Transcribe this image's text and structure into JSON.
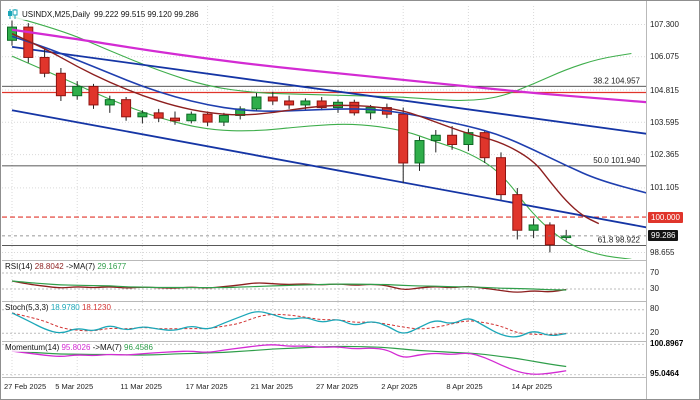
{
  "meta": {
    "symbol_label": "USINDX,M25,Daily",
    "ohlc_label": "99.222 99.515 99.120 99.286"
  },
  "colors": {
    "up_candle": "#2fae4a",
    "up_stroke": "#0c6b25",
    "down_candle": "#e0352b",
    "down_stroke": "#8e1310",
    "wick": "#222222",
    "grid": "#d9d9d9",
    "fib_line": "#222222",
    "alert_red": "#e0352b",
    "last_price_badge": "#141414"
  },
  "price_axis": {
    "labels": [
      {
        "text": "107.300",
        "price": 107.3
      },
      {
        "text": "106.075",
        "price": 106.075
      },
      {
        "text": "104.815",
        "price": 104.815
      },
      {
        "text": "103.595",
        "price": 103.595
      },
      {
        "text": "102.365",
        "price": 102.365
      },
      {
        "text": "101.105",
        "price": 101.105
      },
      {
        "text": "98.655",
        "price": 98.655
      }
    ]
  },
  "badges": [
    {
      "name": "alert-price-badge",
      "text": "100.000",
      "price": 100.0,
      "bg": "#e0352b"
    },
    {
      "name": "last-price-badge",
      "text": "99.286",
      "price": 99.286,
      "bg": "#141414"
    }
  ],
  "levels": {
    "fib": [
      {
        "label": "38.2 104.957",
        "price": 104.957
      },
      {
        "label": "50.0 101.940",
        "price": 101.94
      },
      {
        "label": "61.8 98.922",
        "price": 98.922
      }
    ],
    "horizontal_lines": [
      {
        "name": "resistance-line",
        "price": 104.72,
        "color": "#e0352b",
        "style": "solid"
      },
      {
        "name": "alert-line",
        "price": 100.0,
        "color": "#e0352b",
        "style": "dashed"
      }
    ]
  },
  "x_axis": {
    "tick_labels": [
      "27 Feb 2025",
      "5 Mar 2025",
      "11 Mar 2025",
      "17 Mar 2025",
      "21 Mar 2025",
      "27 Mar 2025",
      "2 Apr 2025",
      "8 Apr 2025",
      "14 Apr 2025"
    ],
    "tick_indices": [
      0,
      4,
      8,
      12,
      16,
      20,
      24,
      28,
      32
    ]
  },
  "chart_data": [
    {
      "type": "candlestick",
      "title": "USINDX,M25,Daily",
      "last_ohlc": {
        "open": 99.222,
        "high": 99.515,
        "low": 99.12,
        "close": 99.286
      },
      "ylim": [
        98.41,
        108.0
      ],
      "dates": [
        "27 Feb",
        "28 Feb",
        "3 Mar",
        "4 Mar",
        "5 Mar",
        "6 Mar",
        "7 Mar",
        "10 Mar",
        "11 Mar",
        "12 Mar",
        "13 Mar",
        "14 Mar",
        "17 Mar",
        "18 Mar",
        "19 Mar",
        "20 Mar",
        "21 Mar",
        "24 Mar",
        "25 Mar",
        "26 Mar",
        "27 Mar",
        "28 Mar",
        "31 Mar",
        "1 Apr",
        "2 Apr",
        "3 Apr",
        "4 Apr",
        "7 Apr",
        "8 Apr",
        "9 Apr",
        "10 Apr",
        "11 Apr",
        "14 Apr",
        "15 Apr",
        "16 Apr"
      ],
      "candles": [
        [
          106.7,
          107.45,
          106.5,
          107.2
        ],
        [
          107.2,
          107.35,
          105.85,
          106.05
        ],
        [
          106.05,
          106.4,
          105.3,
          105.45
        ],
        [
          105.45,
          105.65,
          104.4,
          104.6
        ],
        [
          104.6,
          105.15,
          104.45,
          104.95
        ],
        [
          104.95,
          105.05,
          104.1,
          104.25
        ],
        [
          104.25,
          104.6,
          103.95,
          104.45
        ],
        [
          104.45,
          104.55,
          103.65,
          103.8
        ],
        [
          103.8,
          104.05,
          103.55,
          103.95
        ],
        [
          103.95,
          104.1,
          103.6,
          103.75
        ],
        [
          103.75,
          104.0,
          103.5,
          103.65
        ],
        [
          103.65,
          104.0,
          103.55,
          103.9
        ],
        [
          103.9,
          104.0,
          103.45,
          103.6
        ],
        [
          103.6,
          103.95,
          103.45,
          103.85
        ],
        [
          103.85,
          104.2,
          103.7,
          104.1
        ],
        [
          104.1,
          104.7,
          104.0,
          104.55
        ],
        [
          104.55,
          104.75,
          104.25,
          104.4
        ],
        [
          104.4,
          104.6,
          104.1,
          104.25
        ],
        [
          104.25,
          104.5,
          104.05,
          104.4
        ],
        [
          104.4,
          104.55,
          104.05,
          104.15
        ],
        [
          104.15,
          104.45,
          103.95,
          104.35
        ],
        [
          104.35,
          104.45,
          103.85,
          103.95
        ],
        [
          103.95,
          104.25,
          103.7,
          104.15
        ],
        [
          104.15,
          104.3,
          103.75,
          103.9
        ],
        [
          103.9,
          104.15,
          101.3,
          102.05
        ],
        [
          102.05,
          103.05,
          101.75,
          102.9
        ],
        [
          102.9,
          103.3,
          102.45,
          103.1
        ],
        [
          103.1,
          103.45,
          102.55,
          102.75
        ],
        [
          102.75,
          103.35,
          102.5,
          103.2
        ],
        [
          103.2,
          103.3,
          102.05,
          102.25
        ],
        [
          102.25,
          102.45,
          100.65,
          100.85
        ],
        [
          100.85,
          101.1,
          99.15,
          99.5
        ],
        [
          99.5,
          99.95,
          99.2,
          99.7
        ],
        [
          99.7,
          99.8,
          98.66,
          98.95
        ],
        [
          99.222,
          99.515,
          99.12,
          99.286
        ]
      ],
      "overlays": [
        {
          "name": "bollinger-upper",
          "color": "#3fae4c",
          "width": 1.1,
          "points": [
            [
              0,
              107.6
            ],
            [
              3,
              107.1
            ],
            [
              6,
              106.3
            ],
            [
              9,
              105.55
            ],
            [
              12,
              104.95
            ],
            [
              15,
              104.7
            ],
            [
              18,
              104.65
            ],
            [
              21,
              104.6
            ],
            [
              24,
              104.55
            ],
            [
              26,
              104.45
            ],
            [
              28,
              104.4
            ],
            [
              30,
              104.55
            ],
            [
              32,
              105.05
            ],
            [
              34,
              105.6
            ],
            [
              36,
              106.0
            ],
            [
              38,
              106.2
            ]
          ]
        },
        {
          "name": "bollinger-lower",
          "color": "#3fae4c",
          "width": 1.1,
          "points": [
            [
              0,
              106.1
            ],
            [
              3,
              105.3
            ],
            [
              6,
              104.45
            ],
            [
              9,
              103.75
            ],
            [
              12,
              103.3
            ],
            [
              15,
              103.25
            ],
            [
              18,
              103.45
            ],
            [
              21,
              103.55
            ],
            [
              24,
              103.3
            ],
            [
              26,
              102.85
            ],
            [
              28,
              102.45
            ],
            [
              30,
              101.7
            ],
            [
              32,
              100.05
            ],
            [
              34,
              99.0
            ],
            [
              36,
              98.55
            ],
            [
              38,
              98.4
            ]
          ]
        },
        {
          "name": "trendline-upper",
          "color": "#1535a5",
          "width": 1.8,
          "points": [
            [
              0,
              106.45
            ],
            [
              39,
              103.15
            ]
          ]
        },
        {
          "name": "trendline-lower",
          "color": "#1535a5",
          "width": 1.8,
          "points": [
            [
              0,
              104.05
            ],
            [
              39,
              99.6
            ]
          ]
        },
        {
          "name": "ma-blue",
          "color": "#1f3faf",
          "width": 1.6,
          "points": [
            [
              0,
              106.85
            ],
            [
              2,
              106.45
            ],
            [
              4,
              105.95
            ],
            [
              6,
              105.45
            ],
            [
              8,
              104.95
            ],
            [
              10,
              104.55
            ],
            [
              12,
              104.25
            ],
            [
              14,
              104.05
            ],
            [
              16,
              104.0
            ],
            [
              18,
              104.05
            ],
            [
              20,
              104.1
            ],
            [
              22,
              104.1
            ],
            [
              24,
              103.95
            ],
            [
              26,
              103.7
            ],
            [
              28,
              103.45
            ],
            [
              30,
              103.1
            ],
            [
              32,
              102.55
            ],
            [
              34,
              101.95
            ],
            [
              36,
              101.4
            ],
            [
              39,
              100.9
            ]
          ]
        },
        {
          "name": "ma-dark-red",
          "color": "#8d1f1f",
          "width": 1.4,
          "points": [
            [
              0,
              106.95
            ],
            [
              2,
              106.4
            ],
            [
              4,
              105.7
            ],
            [
              6,
              105.1
            ],
            [
              8,
              104.6
            ],
            [
              10,
              104.2
            ],
            [
              12,
              103.95
            ],
            [
              14,
              103.85
            ],
            [
              16,
              103.95
            ],
            [
              18,
              104.15
            ],
            [
              20,
              104.25
            ],
            [
              22,
              104.2
            ],
            [
              24,
              104.05
            ],
            [
              26,
              103.6
            ],
            [
              28,
              103.15
            ],
            [
              30,
              102.85
            ],
            [
              32,
              102.15
            ],
            [
              33,
              101.35
            ],
            [
              34,
              100.6
            ],
            [
              35,
              100.05
            ],
            [
              36,
              99.75
            ]
          ]
        },
        {
          "name": "ma-long-magenta",
          "color": "#d32bd3",
          "width": 2.2,
          "points": [
            [
              0,
              107.1
            ],
            [
              4,
              106.75
            ],
            [
              8,
              106.35
            ],
            [
              12,
              106.0
            ],
            [
              16,
              105.7
            ],
            [
              20,
              105.45
            ],
            [
              24,
              105.2
            ],
            [
              28,
              104.95
            ],
            [
              32,
              104.7
            ],
            [
              36,
              104.5
            ],
            [
              39,
              104.35
            ]
          ]
        }
      ]
    },
    {
      "type": "line",
      "panel": "rsi",
      "name": "RSI(14)",
      "value": "28.8042",
      "ma_name": "->MA(7)",
      "ma_value": "29.1677",
      "line_color": "#8d1f1f",
      "ma_color": "#2f9e4a",
      "ma_period": 7,
      "levels": [
        70,
        30
      ],
      "ylim": [
        0,
        100
      ],
      "values": [
        50,
        42,
        37,
        32,
        36,
        33,
        36,
        32,
        35,
        33,
        32,
        35,
        32,
        36,
        40,
        46,
        43,
        41,
        43,
        40,
        43,
        39,
        42,
        39,
        27,
        33,
        36,
        33,
        37,
        32,
        26,
        21,
        26,
        22,
        28.8
      ]
    },
    {
      "type": "line",
      "panel": "stochastic",
      "name": "Stoch(5,3,3)",
      "value": "18.9780",
      "value2": "18.1230",
      "k_color": "#1ba7b8",
      "d_color": "#d23333",
      "d_period": 3,
      "levels": [
        80,
        20
      ],
      "ylim": [
        0,
        100
      ],
      "k": [
        72,
        52,
        30,
        18,
        34,
        24,
        42,
        26,
        38,
        30,
        26,
        40,
        28,
        46,
        62,
        78,
        68,
        54,
        62,
        46,
        58,
        38,
        52,
        40,
        15,
        35,
        55,
        42,
        62,
        38,
        15,
        8,
        28,
        12,
        19
      ]
    },
    {
      "type": "line",
      "panel": "momentum",
      "name": "Momentum(14)",
      "value": "95.8026",
      "ma_name": "->MA(7)",
      "ma_value": "96.4586",
      "line_color": "#d32bd3",
      "ma_color": "#2f9e4a",
      "ma_period": 7,
      "axis_max": "100.8967",
      "axis_min": "95.0464",
      "ylim": [
        94.6,
        101.35
      ],
      "values": [
        99.6,
        99.2,
        98.8,
        98.5,
        98.9,
        98.7,
        99.0,
        98.8,
        99.1,
        99.3,
        99.5,
        99.6,
        99.3,
        99.8,
        100.2,
        100.6,
        100.89,
        100.5,
        100.6,
        100.3,
        100.45,
        100.0,
        100.2,
        99.9,
        98.2,
        98.9,
        99.2,
        98.9,
        99.3,
        98.4,
        96.9,
        95.6,
        95.05,
        95.3,
        95.8
      ]
    }
  ]
}
